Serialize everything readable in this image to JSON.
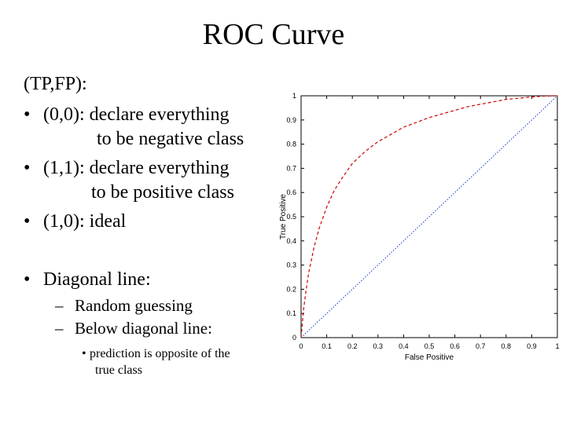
{
  "slide": {
    "title": "ROC Curve",
    "intro": "(TP,FP):",
    "bullet_glyph": "•",
    "dash_glyph": "–",
    "bullets": [
      {
        "line1": "(0,0): declare everything",
        "line2": "to be negative class"
      },
      {
        "line1": "(1,1): declare everything",
        "line2": "to be positive class"
      },
      {
        "line1": "(1,0): ideal"
      }
    ],
    "diagonal": {
      "label": "Diagonal line:",
      "subs": [
        "Random guessing",
        "Below diagonal line:"
      ],
      "subsub": {
        "line1": "prediction is opposite of the",
        "line2": "true class"
      }
    }
  },
  "chart_data": {
    "type": "line",
    "xlabel": "False Positive",
    "ylabel": "True Positive",
    "xlim": [
      0,
      1
    ],
    "ylim": [
      0,
      1
    ],
    "xticks": [
      "0",
      "0.1",
      "0.2",
      "0.3",
      "0.4",
      "0.5",
      "0.6",
      "0.7",
      "0.8",
      "0.9",
      "1"
    ],
    "yticks": [
      "0",
      "0.1",
      "0.2",
      "0.3",
      "0.4",
      "0.5",
      "0.6",
      "0.7",
      "0.8",
      "0.9",
      "1"
    ],
    "series": [
      {
        "color": "#cc0000",
        "style": "dashed",
        "x": [
          0,
          0.005,
          0.01,
          0.02,
          0.03,
          0.05,
          0.07,
          0.1,
          0.13,
          0.16,
          0.2,
          0.25,
          0.3,
          0.35,
          0.4,
          0.45,
          0.5,
          0.55,
          0.6,
          0.65,
          0.7,
          0.75,
          0.8,
          0.85,
          0.9,
          0.95,
          1.0
        ],
        "y": [
          0,
          0.06,
          0.12,
          0.2,
          0.27,
          0.37,
          0.45,
          0.54,
          0.61,
          0.66,
          0.72,
          0.77,
          0.81,
          0.84,
          0.87,
          0.89,
          0.91,
          0.925,
          0.94,
          0.955,
          0.965,
          0.975,
          0.985,
          0.99,
          0.995,
          0.999,
          1.0
        ]
      },
      {
        "color": "#3355cc",
        "style": "dotted",
        "x": [
          0,
          1
        ],
        "y": [
          0,
          1
        ]
      }
    ]
  }
}
